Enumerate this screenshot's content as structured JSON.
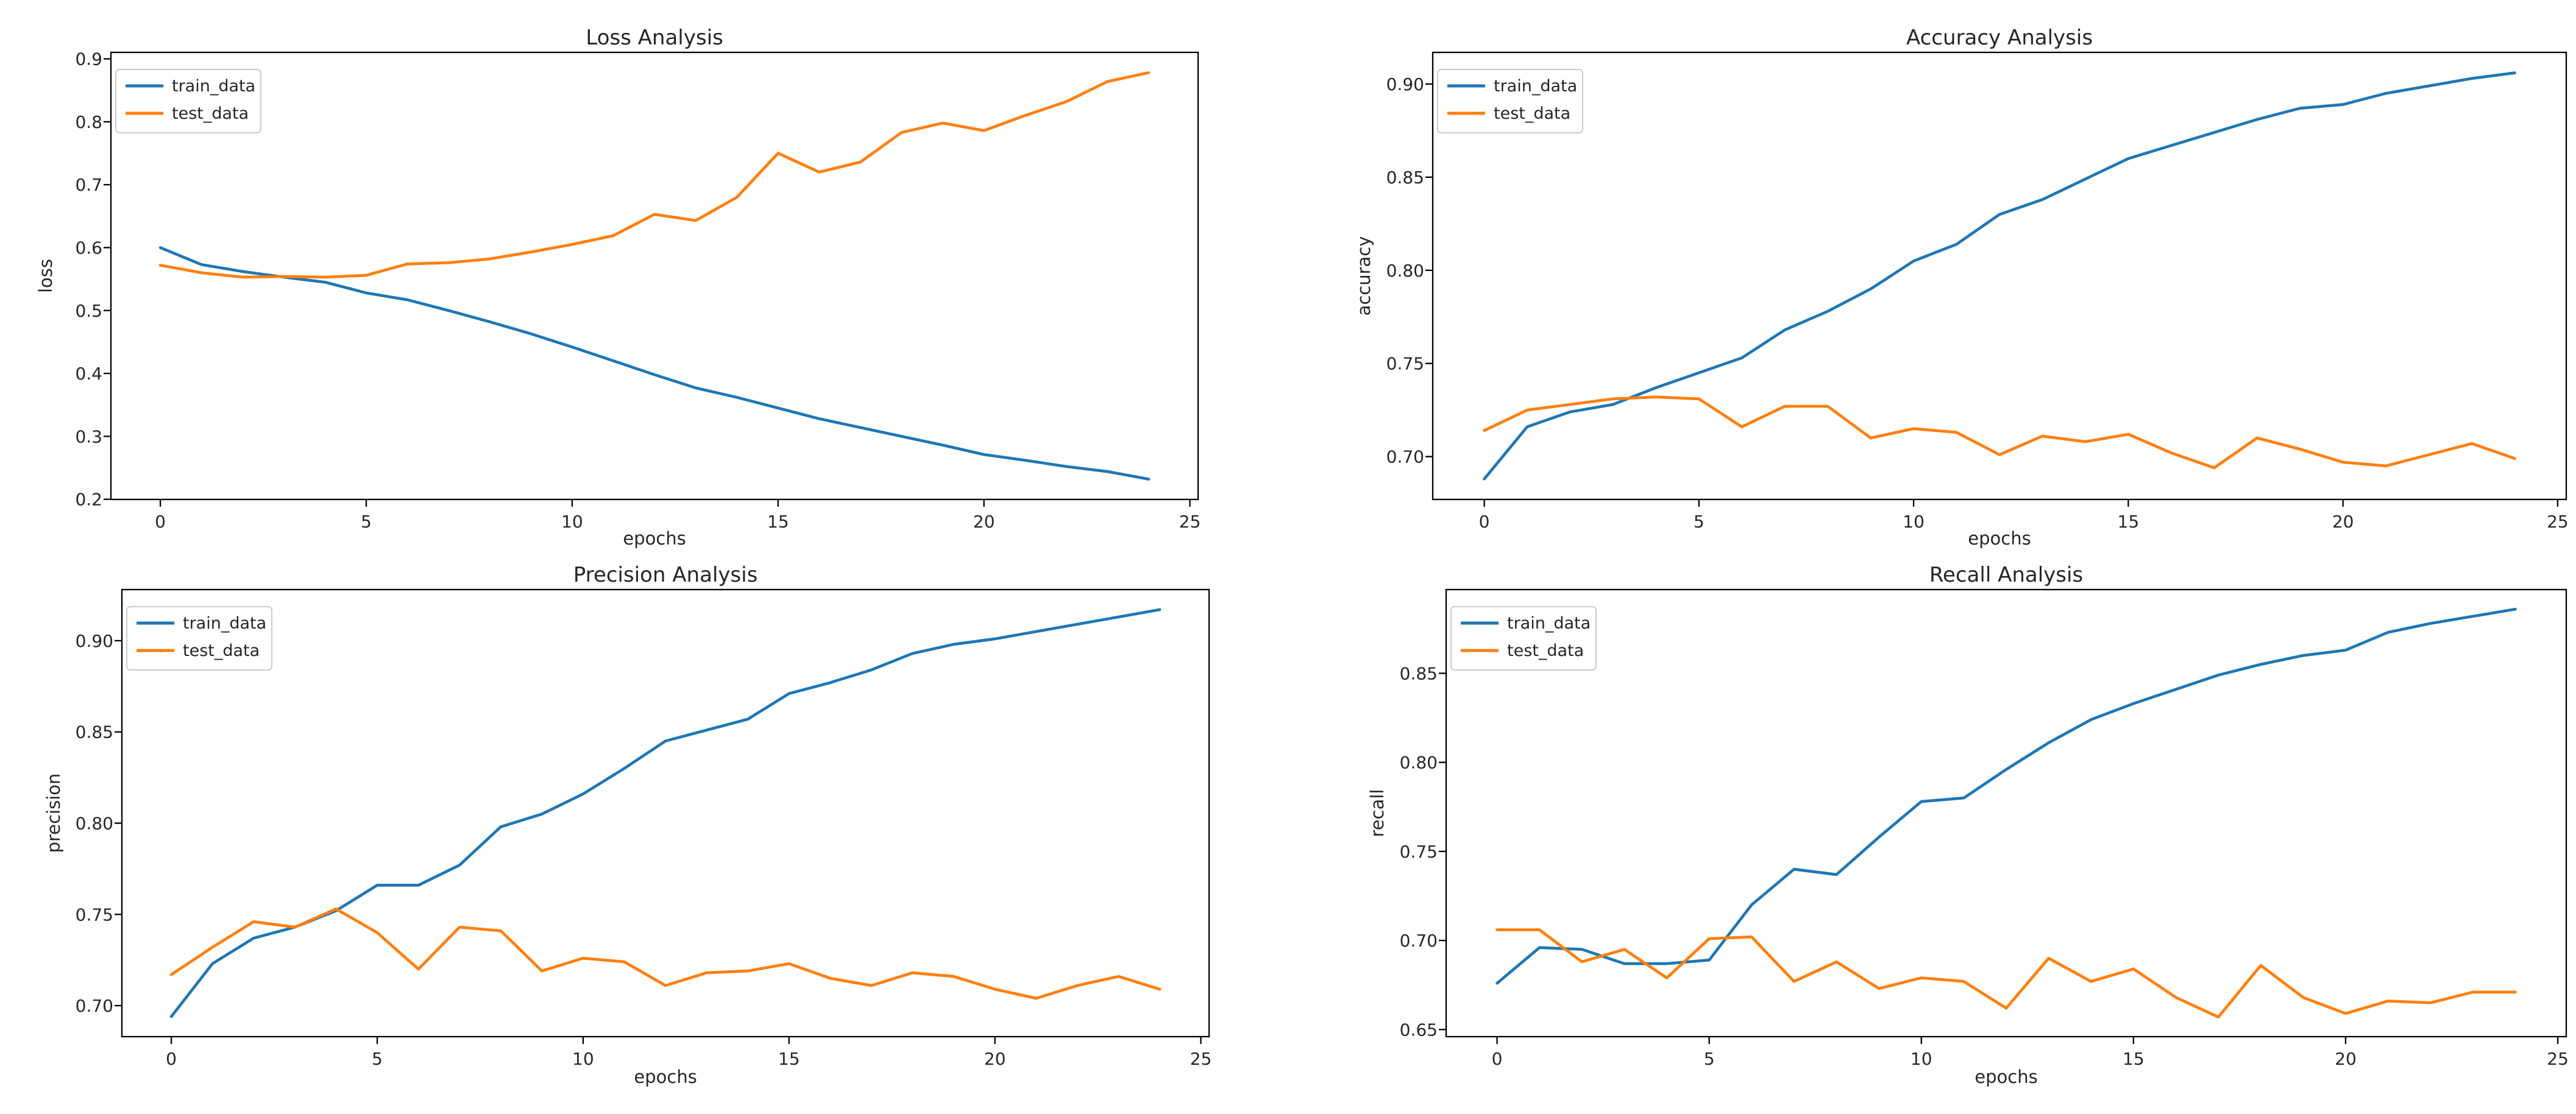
{
  "figure": {
    "background": "#ffffff",
    "axes_color": "#000000",
    "text_color": "#262626"
  },
  "legend": {
    "position": "upper left",
    "entries": [
      "train_data",
      "test_data"
    ]
  },
  "series_colors": {
    "train_data": "#1f77b4",
    "test_data": "#ff7f0e"
  },
  "chart_data": [
    {
      "name": "loss",
      "type": "line",
      "title": "Loss Analysis",
      "xlabel": "epochs",
      "ylabel": "loss",
      "x": [
        0,
        1,
        2,
        3,
        4,
        5,
        6,
        7,
        8,
        9,
        10,
        11,
        12,
        13,
        14,
        15,
        16,
        17,
        18,
        19,
        20,
        21,
        22,
        23,
        24
      ],
      "series": [
        {
          "name": "train_data",
          "color": "#1f77b4",
          "values": [
            0.6,
            0.573,
            0.562,
            0.553,
            0.545,
            0.528,
            0.517,
            0.5,
            0.482,
            0.463,
            0.442,
            0.42,
            0.398,
            0.377,
            0.362,
            0.345,
            0.328,
            0.314,
            0.3,
            0.286,
            0.271,
            0.262,
            0.252,
            0.244,
            0.232
          ]
        },
        {
          "name": "test_data",
          "color": "#ff7f0e",
          "values": [
            0.572,
            0.56,
            0.553,
            0.554,
            0.553,
            0.556,
            0.574,
            0.576,
            0.582,
            0.593,
            0.605,
            0.619,
            0.653,
            0.643,
            0.68,
            0.75,
            0.72,
            0.736,
            0.783,
            0.798,
            0.786,
            0.81,
            0.832,
            0.864,
            0.878
          ]
        }
      ],
      "xlim": [
        -1.2,
        25.2
      ],
      "ylim": [
        0.1997,
        0.9103
      ],
      "xticks": {
        "values": [
          0,
          5,
          10,
          15,
          20,
          25
        ],
        "labels": [
          "0",
          "5",
          "10",
          "15",
          "20",
          "25"
        ]
      },
      "yticks": {
        "values": [
          0.2,
          0.3,
          0.4,
          0.5,
          0.6,
          0.7,
          0.8,
          0.9
        ],
        "labels": [
          "0.2",
          "0.3",
          "0.4",
          "0.5",
          "0.6",
          "0.7",
          "0.8",
          "0.9"
        ]
      },
      "legend_position": "upper left",
      "grid": false
    },
    {
      "name": "accuracy",
      "type": "line",
      "title": "Accuracy Analysis",
      "xlabel": "epochs",
      "ylabel": "accuracy",
      "x": [
        0,
        1,
        2,
        3,
        4,
        5,
        6,
        7,
        8,
        9,
        10,
        11,
        12,
        13,
        14,
        15,
        16,
        17,
        18,
        19,
        20,
        21,
        22,
        23,
        24
      ],
      "series": [
        {
          "name": "train_data",
          "color": "#1f77b4",
          "values": [
            0.688,
            0.716,
            0.724,
            0.728,
            0.737,
            0.745,
            0.753,
            0.768,
            0.778,
            0.79,
            0.805,
            0.814,
            0.83,
            0.838,
            0.849,
            0.86,
            0.867,
            0.874,
            0.881,
            0.887,
            0.889,
            0.895,
            0.899,
            0.903,
            0.906
          ]
        },
        {
          "name": "test_data",
          "color": "#ff7f0e",
          "values": [
            0.714,
            0.725,
            0.728,
            0.731,
            0.732,
            0.731,
            0.716,
            0.727,
            0.727,
            0.71,
            0.715,
            0.713,
            0.701,
            0.711,
            0.708,
            0.712,
            0.702,
            0.694,
            0.71,
            0.704,
            0.697,
            0.695,
            0.701,
            0.707,
            0.699
          ]
        }
      ],
      "xlim": [
        -1.2,
        25.2
      ],
      "ylim": [
        0.677,
        0.917
      ],
      "xticks": {
        "values": [
          0,
          5,
          10,
          15,
          20,
          25
        ],
        "labels": [
          "0",
          "5",
          "10",
          "15",
          "20",
          "25"
        ]
      },
      "yticks": {
        "values": [
          0.7,
          0.75,
          0.8,
          0.85,
          0.9
        ],
        "labels": [
          "0.70",
          "0.75",
          "0.80",
          "0.85",
          "0.90"
        ]
      },
      "legend_position": "upper left",
      "grid": false
    },
    {
      "name": "precision",
      "type": "line",
      "title": "Precision Analysis",
      "xlabel": "epochs",
      "ylabel": "precision",
      "x": [
        0,
        1,
        2,
        3,
        4,
        5,
        6,
        7,
        8,
        9,
        10,
        11,
        12,
        13,
        14,
        15,
        16,
        17,
        18,
        19,
        20,
        21,
        22,
        23,
        24
      ],
      "series": [
        {
          "name": "train_data",
          "color": "#1f77b4",
          "values": [
            0.694,
            0.723,
            0.737,
            0.743,
            0.752,
            0.766,
            0.766,
            0.777,
            0.798,
            0.805,
            0.816,
            0.83,
            0.845,
            0.851,
            0.857,
            0.871,
            0.877,
            0.884,
            0.893,
            0.898,
            0.901,
            0.905,
            0.909,
            0.913,
            0.917
          ]
        },
        {
          "name": "test_data",
          "color": "#ff7f0e",
          "values": [
            0.717,
            0.732,
            0.746,
            0.743,
            0.753,
            0.74,
            0.72,
            0.743,
            0.741,
            0.719,
            0.726,
            0.724,
            0.711,
            0.718,
            0.719,
            0.723,
            0.715,
            0.711,
            0.718,
            0.716,
            0.709,
            0.704,
            0.711,
            0.716,
            0.709
          ]
        }
      ],
      "xlim": [
        -1.2,
        25.2
      ],
      "ylim": [
        0.683,
        0.928
      ],
      "xticks": {
        "values": [
          0,
          5,
          10,
          15,
          20,
          25
        ],
        "labels": [
          "0",
          "5",
          "10",
          "15",
          "20",
          "25"
        ]
      },
      "yticks": {
        "values": [
          0.7,
          0.75,
          0.8,
          0.85,
          0.9
        ],
        "labels": [
          "0.70",
          "0.75",
          "0.80",
          "0.85",
          "0.90"
        ]
      },
      "legend_position": "upper left",
      "grid": false
    },
    {
      "name": "recall",
      "type": "line",
      "title": "Recall Analysis",
      "xlabel": "epochs",
      "ylabel": "recall",
      "x": [
        0,
        1,
        2,
        3,
        4,
        5,
        6,
        7,
        8,
        9,
        10,
        11,
        12,
        13,
        14,
        15,
        16,
        17,
        18,
        19,
        20,
        21,
        22,
        23,
        24
      ],
      "series": [
        {
          "name": "train_data",
          "color": "#1f77b4",
          "values": [
            0.676,
            0.696,
            0.695,
            0.687,
            0.687,
            0.689,
            0.72,
            0.74,
            0.737,
            0.758,
            0.778,
            0.78,
            0.796,
            0.811,
            0.824,
            0.833,
            0.841,
            0.849,
            0.855,
            0.86,
            0.863,
            0.873,
            0.878,
            0.882,
            0.886
          ]
        },
        {
          "name": "test_data",
          "color": "#ff7f0e",
          "values": [
            0.706,
            0.706,
            0.688,
            0.695,
            0.679,
            0.701,
            0.702,
            0.677,
            0.688,
            0.673,
            0.679,
            0.677,
            0.662,
            0.69,
            0.677,
            0.684,
            0.668,
            0.657,
            0.686,
            0.668,
            0.659,
            0.666,
            0.665,
            0.671,
            0.671
          ]
        }
      ],
      "xlim": [
        -1.2,
        25.2
      ],
      "ylim": [
        0.646,
        0.897
      ],
      "xticks": {
        "values": [
          0,
          5,
          10,
          15,
          20,
          25
        ],
        "labels": [
          "0",
          "5",
          "10",
          "15",
          "20",
          "25"
        ]
      },
      "yticks": {
        "values": [
          0.65,
          0.7,
          0.75,
          0.8,
          0.85
        ],
        "labels": [
          "0.65",
          "0.70",
          "0.75",
          "0.80",
          "0.85"
        ]
      },
      "legend_position": "upper left",
      "grid": false
    }
  ]
}
